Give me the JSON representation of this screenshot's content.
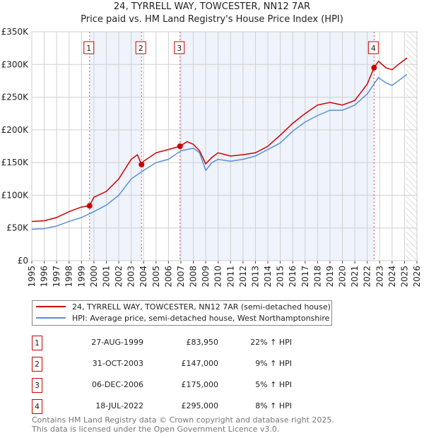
{
  "chart_data": {
    "type": "line",
    "title": "24, TYRRELL WAY, TOWCESTER, NN12 7AR",
    "subtitle": "Price paid vs. HM Land Registry's House Price Index (HPI)",
    "xlim": [
      1995,
      2026
    ],
    "ylim": [
      0,
      350000
    ],
    "x_ticks": [
      "1995",
      "1996",
      "1997",
      "1998",
      "1999",
      "2000",
      "2001",
      "2002",
      "2003",
      "2004",
      "2005",
      "2006",
      "2007",
      "2008",
      "2009",
      "2010",
      "2011",
      "2012",
      "2013",
      "2014",
      "2015",
      "2016",
      "2017",
      "2018",
      "2019",
      "2020",
      "2021",
      "2022",
      "2023",
      "2024",
      "2025",
      "2026"
    ],
    "y_ticks": [
      {
        "v": 0,
        "l": "£0"
      },
      {
        "v": 50000,
        "l": "£50K"
      },
      {
        "v": 100000,
        "l": "£100K"
      },
      {
        "v": 150000,
        "l": "£150K"
      },
      {
        "v": 200000,
        "l": "£200K"
      },
      {
        "v": 250000,
        "l": "£250K"
      },
      {
        "v": 300000,
        "l": "£300K"
      },
      {
        "v": 350000,
        "l": "£350K"
      }
    ],
    "series": [
      {
        "name": "24, TYRRELL WAY, TOWCESTER, NN12 7AR (semi-detached house)",
        "color": "#cc0000",
        "x": [
          1995,
          1996,
          1997,
          1998,
          1999,
          1999.65,
          2000,
          2001,
          2002,
          2003,
          2003.5,
          2003.83,
          2004,
          2005,
          2006,
          2006.93,
          2007.5,
          2008,
          2008.5,
          2009,
          2009.5,
          2010,
          2011,
          2012,
          2013,
          2014,
          2015,
          2016,
          2017,
          2018,
          2019,
          2020,
          2021,
          2022,
          2022.55,
          2022.9,
          2023.5,
          2024,
          2024.5,
          2025.2
        ],
        "y": [
          60000,
          61000,
          66000,
          75000,
          82000,
          83950,
          97000,
          106000,
          125000,
          155000,
          162000,
          147000,
          152000,
          165000,
          170000,
          175000,
          182000,
          178000,
          168000,
          148000,
          158000,
          165000,
          160000,
          162000,
          165000,
          175000,
          192000,
          210000,
          225000,
          238000,
          242000,
          238000,
          245000,
          270000,
          295000,
          305000,
          295000,
          292000,
          300000,
          310000
        ]
      },
      {
        "name": "HPI: Average price, semi-detached house, West Northamptonshire",
        "color": "#5b8fd4",
        "x": [
          1995,
          1996,
          1997,
          1998,
          1999,
          2000,
          2001,
          2002,
          2003,
          2004,
          2005,
          2006,
          2007,
          2008,
          2008.5,
          2009,
          2009.5,
          2010,
          2011,
          2012,
          2013,
          2014,
          2015,
          2016,
          2017,
          2018,
          2019,
          2020,
          2021,
          2022,
          2022.9,
          2023.5,
          2024,
          2024.5,
          2025.2
        ],
        "y": [
          48000,
          49000,
          53000,
          60000,
          66000,
          75000,
          85000,
          100000,
          125000,
          138000,
          150000,
          155000,
          168000,
          172000,
          165000,
          138000,
          150000,
          155000,
          152000,
          155000,
          160000,
          170000,
          180000,
          198000,
          212000,
          222000,
          230000,
          230000,
          238000,
          255000,
          280000,
          272000,
          268000,
          275000,
          285000
        ]
      }
    ],
    "sales": [
      {
        "n": "1",
        "date": "27-AUG-1999",
        "x": 1999.65,
        "price": "£83,950",
        "value": 83950,
        "hpi": "22% ↑ HPI"
      },
      {
        "n": "2",
        "date": "31-OCT-2003",
        "x": 2003.83,
        "price": "£147,000",
        "value": 147000,
        "hpi": "9% ↑ HPI"
      },
      {
        "n": "3",
        "date": "06-DEC-2006",
        "x": 2006.93,
        "price": "£175,000",
        "value": 175000,
        "hpi": "5% ↑ HPI"
      },
      {
        "n": "4",
        "date": "18-JUL-2022",
        "x": 2022.55,
        "price": "£295,000",
        "value": 295000,
        "hpi": "8% ↑ HPI"
      }
    ],
    "forecast_start": 2025.1
  },
  "footer": {
    "line1": "Contains HM Land Registry data © Crown copyright and database right 2025.",
    "line2": "This data is licensed under the Open Government Licence v3.0."
  }
}
